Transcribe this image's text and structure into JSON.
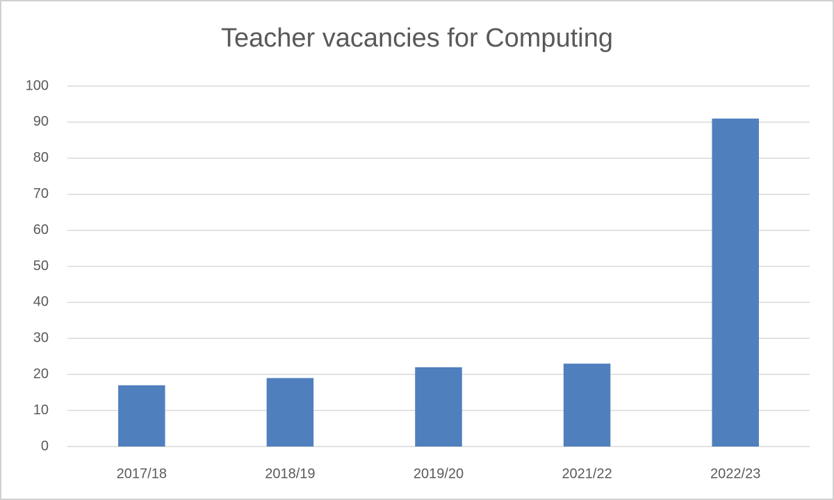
{
  "chart_data": {
    "type": "bar",
    "title": "Teacher vacancies for Computing",
    "categories": [
      "2017/18",
      "2018/19",
      "2019/20",
      "2021/22",
      "2022/23"
    ],
    "values": [
      17,
      19,
      22,
      23,
      91
    ],
    "color": "#4f7fbd",
    "ylim": [
      0,
      100
    ],
    "yticks": [
      0,
      10,
      20,
      30,
      40,
      50,
      60,
      70,
      80,
      90,
      100
    ],
    "grid": true
  }
}
